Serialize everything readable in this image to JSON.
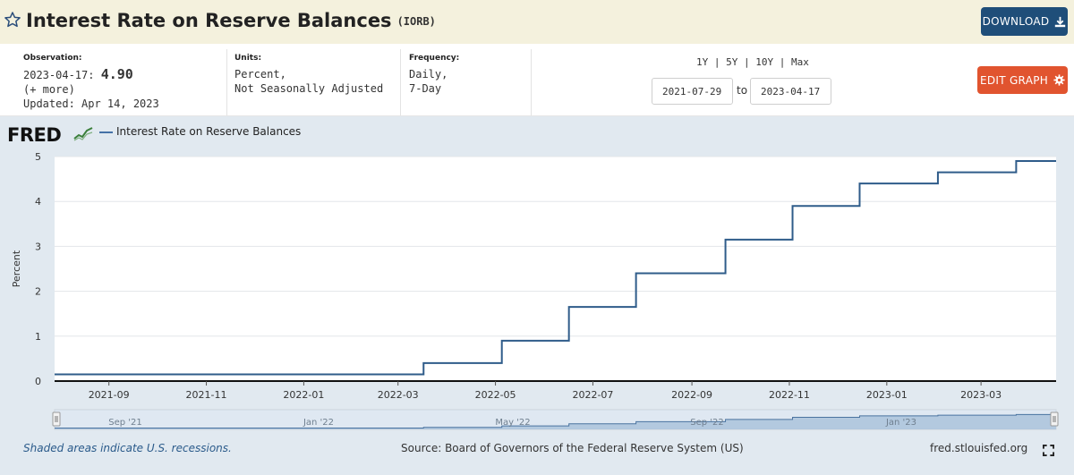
{
  "header": {
    "title": "Interest Rate on Reserve Balances",
    "series_id": "(IORB)",
    "download_label": "DOWNLOAD",
    "favorite_icon": "star-outline-icon",
    "download_icon": "download-icon"
  },
  "info": {
    "observation_label": "Observation:",
    "observation_date": "2023-04-17:",
    "observation_value": "4.90",
    "more_link": "(+ more)",
    "updated": "Updated: Apr 14, 2023",
    "units_label": "Units:",
    "units_line1": "Percent,",
    "units_line2": "Not Seasonally Adjusted",
    "frequency_label": "Frequency:",
    "frequency_line1": "Daily,",
    "frequency_line2": "7-Day"
  },
  "range": {
    "links": [
      "1Y",
      "5Y",
      "10Y",
      "Max"
    ],
    "separator": "|",
    "start_date": "2021-07-29",
    "to_label": "to",
    "end_date": "2023-04-17",
    "edit_label": "EDIT GRAPH",
    "edit_icon": "gear-icon"
  },
  "legend": {
    "logo_text": "FRED",
    "series_label": "Interest Rate on Reserve Balances"
  },
  "footer": {
    "recession_note": "Shaded areas indicate U.S. recessions.",
    "source": "Source: Board of Governors of the Federal Reserve System (US)",
    "site": "fred.stlouisfed.org",
    "fullscreen_icon": "fullscreen-icon"
  },
  "colors": {
    "series_line": "#2f5c8a",
    "header_bg": "#f4f1dd",
    "panel_bg": "#e1e9f0",
    "download_btn": "#1f4e79",
    "edit_btn": "#e1542f"
  },
  "chart_data": {
    "type": "line",
    "title": "",
    "xlabel": "",
    "ylabel": "Percent",
    "ylim": [
      0,
      5
    ],
    "yticks": [
      0,
      1,
      2,
      3,
      4,
      5
    ],
    "x_start": "2021-07-29",
    "x_end": "2023-04-17",
    "xticks": [
      "2021-09",
      "2021-11",
      "2022-01",
      "2022-03",
      "2022-05",
      "2022-07",
      "2022-09",
      "2022-11",
      "2023-01",
      "2023-03"
    ],
    "grid": true,
    "step": true,
    "series": [
      {
        "name": "Interest Rate on Reserve Balances",
        "points": [
          [
            "2021-07-29",
            0.15
          ],
          [
            "2022-03-17",
            0.4
          ],
          [
            "2022-05-05",
            0.9
          ],
          [
            "2022-06-16",
            1.65
          ],
          [
            "2022-07-28",
            2.4
          ],
          [
            "2022-09-22",
            3.15
          ],
          [
            "2022-11-03",
            3.9
          ],
          [
            "2022-12-15",
            4.4
          ],
          [
            "2023-02-02",
            4.65
          ],
          [
            "2023-03-23",
            4.9
          ],
          [
            "2023-04-17",
            4.9
          ]
        ]
      }
    ],
    "navigator": {
      "labels": [
        "Sep '21",
        "Jan '22",
        "May '22",
        "Sep '22",
        "Jan '23"
      ]
    }
  }
}
